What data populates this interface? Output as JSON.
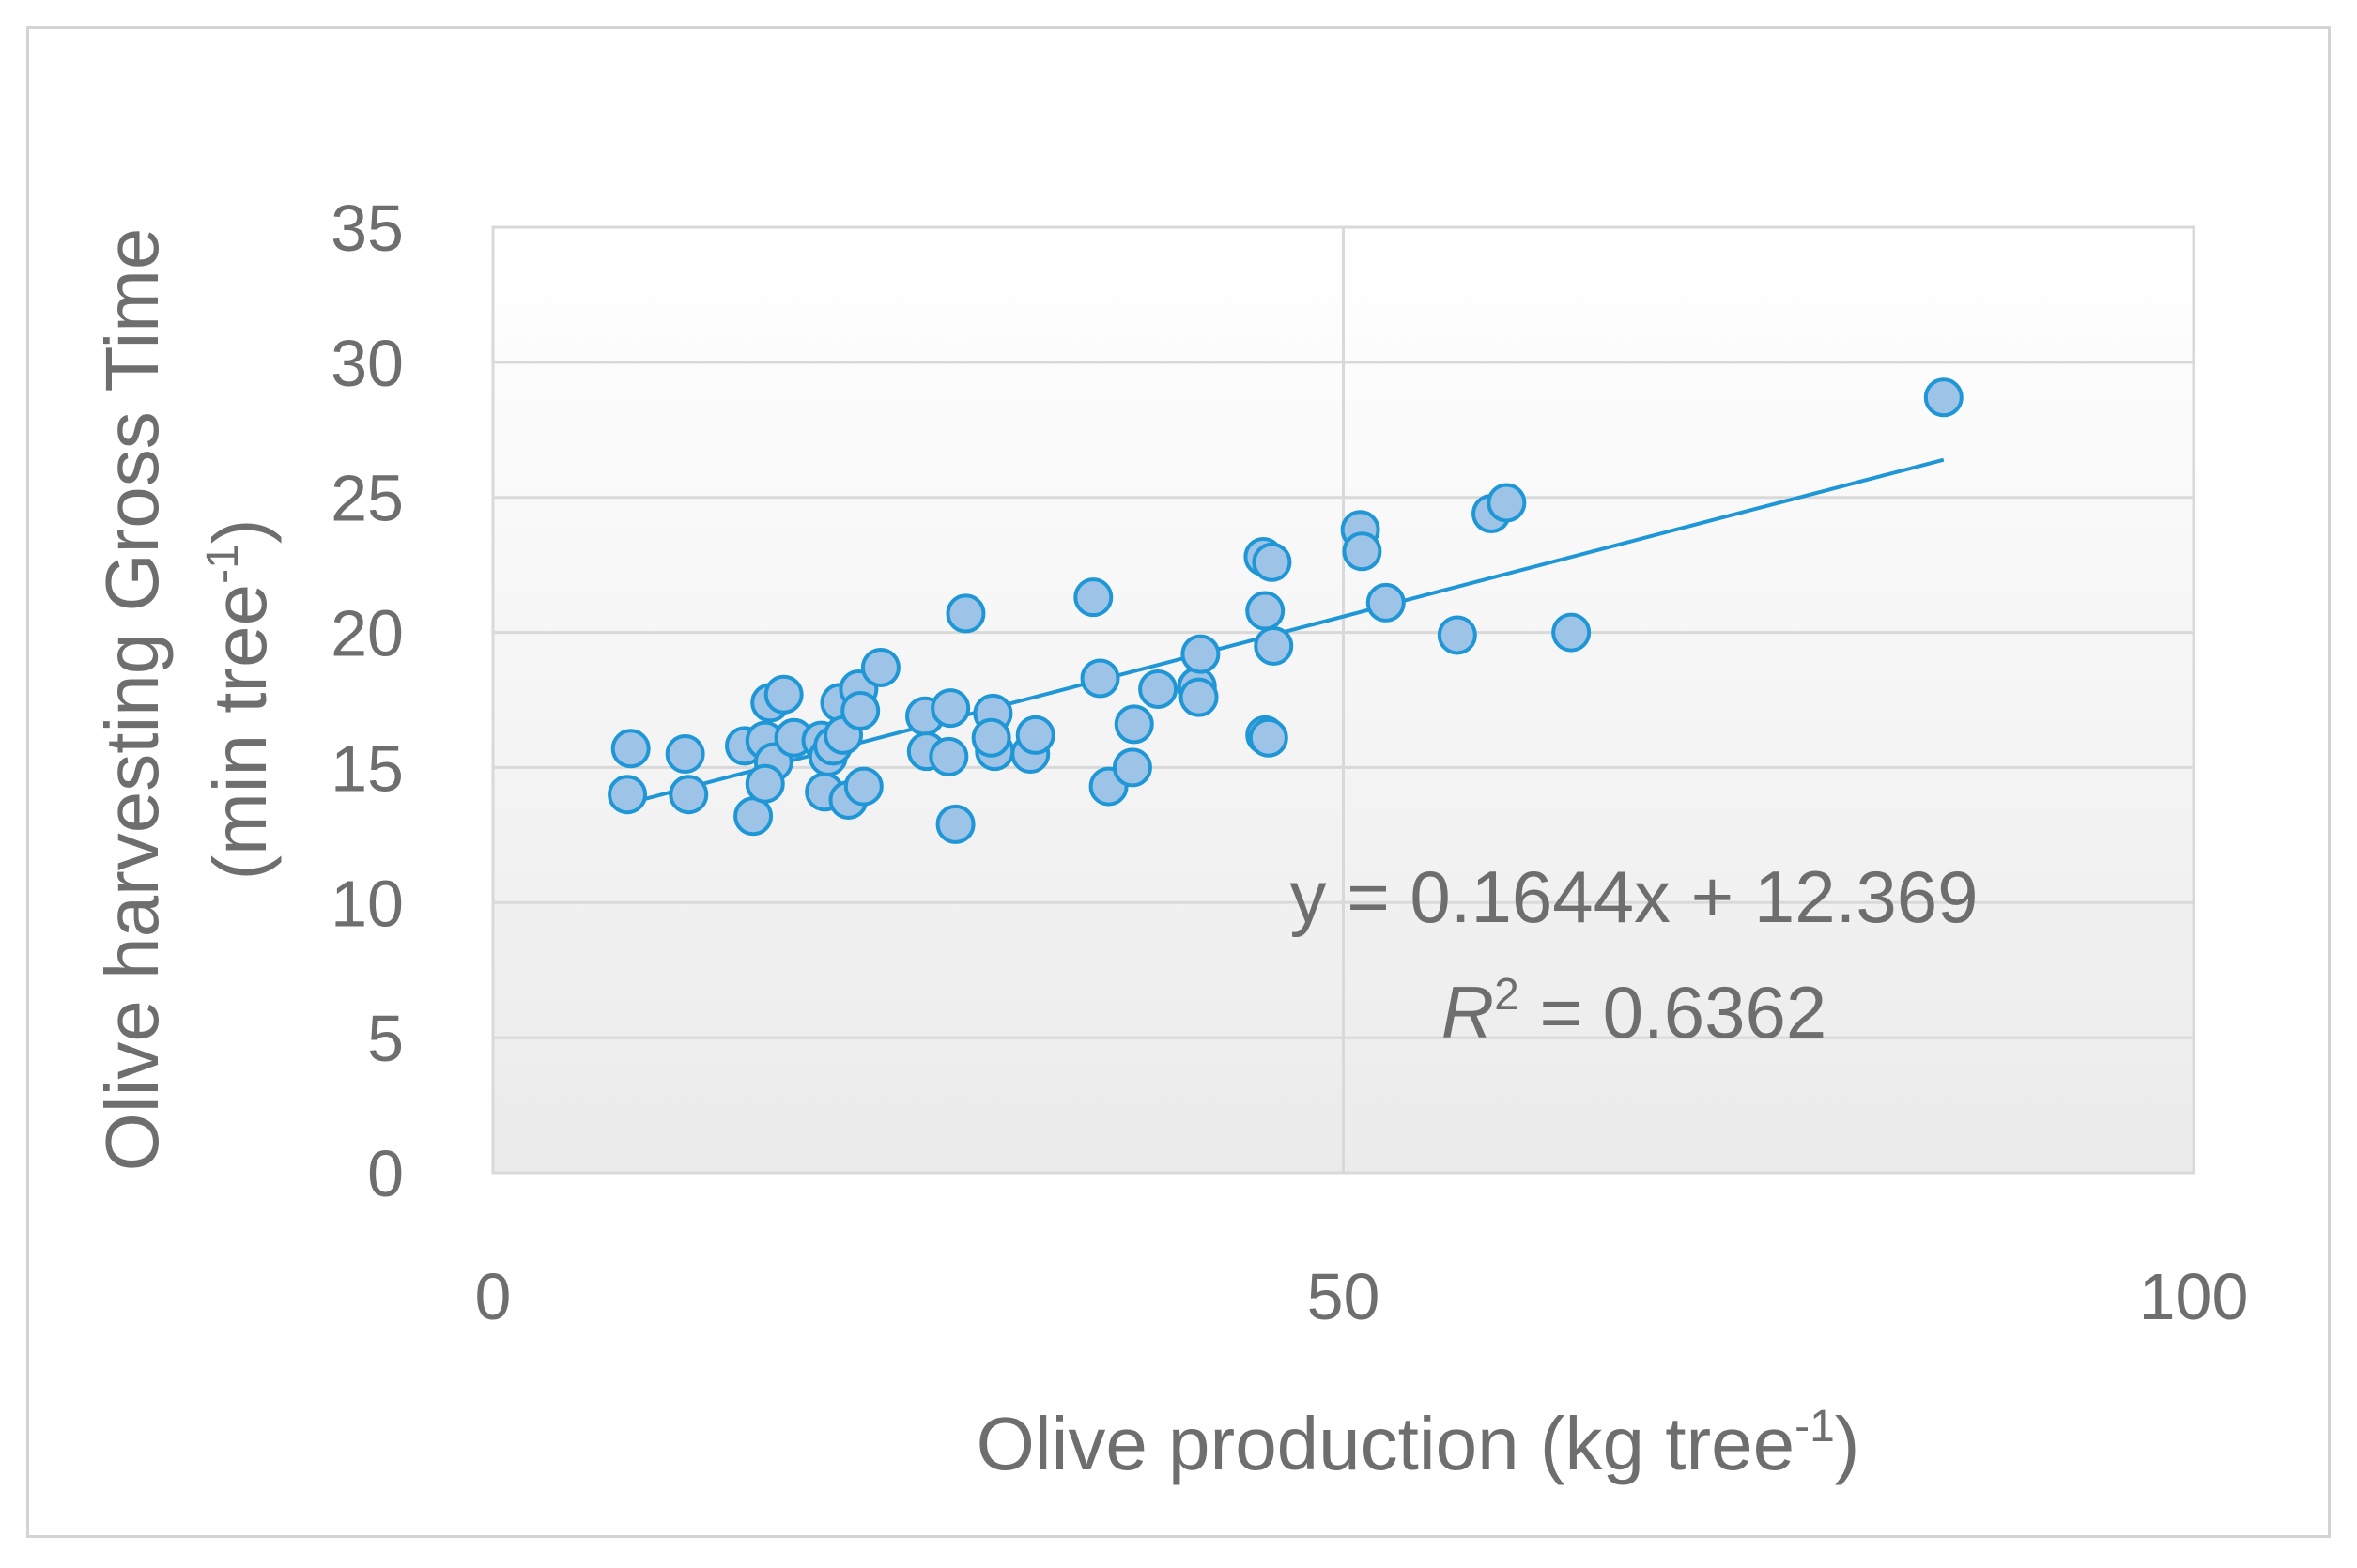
{
  "chart_data": {
    "type": "scatter",
    "title": "",
    "xlabel": {
      "main": "Olive production (kg tree",
      "sup": "-1",
      "close": ")"
    },
    "ylabel": {
      "line1": "Olive harvesting Gross Time",
      "line2_main": "(min tree",
      "line2_sup": "-1",
      "line2_close": ")"
    },
    "xlim": [
      0,
      100
    ],
    "ylim": [
      0,
      35
    ],
    "xticks": [
      0,
      50,
      100
    ],
    "yticks": [
      0,
      5,
      10,
      15,
      20,
      25,
      30,
      35
    ],
    "grid": true,
    "colors": {
      "marker_fill": "#9dc3e6",
      "marker_stroke": "#1f96d6",
      "trendline": "#1f96d6",
      "grid": "#d9d9d9",
      "text": "#6e6e6e"
    },
    "series": [
      {
        "name": "Olive harvesting gross time",
        "points": [
          [
            8.1,
            15.7
          ],
          [
            7.9,
            14.0
          ],
          [
            11.3,
            15.5
          ],
          [
            11.5,
            14.0
          ],
          [
            14.8,
            15.8
          ],
          [
            15.3,
            13.2
          ],
          [
            16.3,
            17.4
          ],
          [
            16.0,
            16.0
          ],
          [
            16.5,
            15.2
          ],
          [
            16.0,
            14.4
          ],
          [
            17.1,
            17.7
          ],
          [
            17.7,
            16.1
          ],
          [
            19.3,
            16.0
          ],
          [
            19.5,
            14.1
          ],
          [
            19.7,
            15.4
          ],
          [
            20.0,
            15.8
          ],
          [
            20.4,
            17.4
          ],
          [
            20.6,
            16.2
          ],
          [
            20.9,
            13.8
          ],
          [
            21.5,
            17.9
          ],
          [
            21.6,
            17.1
          ],
          [
            21.8,
            14.3
          ],
          [
            22.8,
            18.7
          ],
          [
            25.4,
            16.9
          ],
          [
            25.5,
            15.6
          ],
          [
            26.9,
            17.2
          ],
          [
            26.8,
            15.4
          ],
          [
            27.2,
            12.9
          ],
          [
            27.8,
            20.7
          ],
          [
            29.4,
            17.0
          ],
          [
            29.5,
            15.6
          ],
          [
            29.3,
            16.1
          ],
          [
            31.6,
            15.5
          ],
          [
            31.9,
            16.2
          ],
          [
            35.3,
            21.3
          ],
          [
            35.7,
            18.3
          ],
          [
            36.2,
            14.3
          ],
          [
            37.7,
            16.6
          ],
          [
            37.6,
            15.0
          ],
          [
            39.1,
            17.9
          ],
          [
            41.4,
            18.0
          ],
          [
            41.5,
            17.6
          ],
          [
            41.6,
            19.2
          ],
          [
            45.3,
            22.8
          ],
          [
            45.8,
            22.6
          ],
          [
            45.4,
            20.8
          ],
          [
            45.9,
            19.5
          ],
          [
            45.4,
            16.2
          ],
          [
            45.6,
            16.1
          ],
          [
            51.0,
            23.8
          ],
          [
            51.1,
            23.0
          ],
          [
            52.5,
            21.1
          ],
          [
            56.7,
            19.9
          ],
          [
            58.7,
            24.4
          ],
          [
            59.6,
            24.8
          ],
          [
            63.4,
            20.0
          ],
          [
            85.3,
            28.7
          ]
        ]
      }
    ],
    "trendline": {
      "type": "linear",
      "slope": 0.1644,
      "intercept": 12.369,
      "x_start": 7.9,
      "x_end": 85.3
    },
    "annotations": {
      "equation": "y = 0.1644x + 12.369",
      "r2_symbol": "R",
      "r2_sup": "2",
      "r2_rest": " = 0.6362"
    }
  }
}
